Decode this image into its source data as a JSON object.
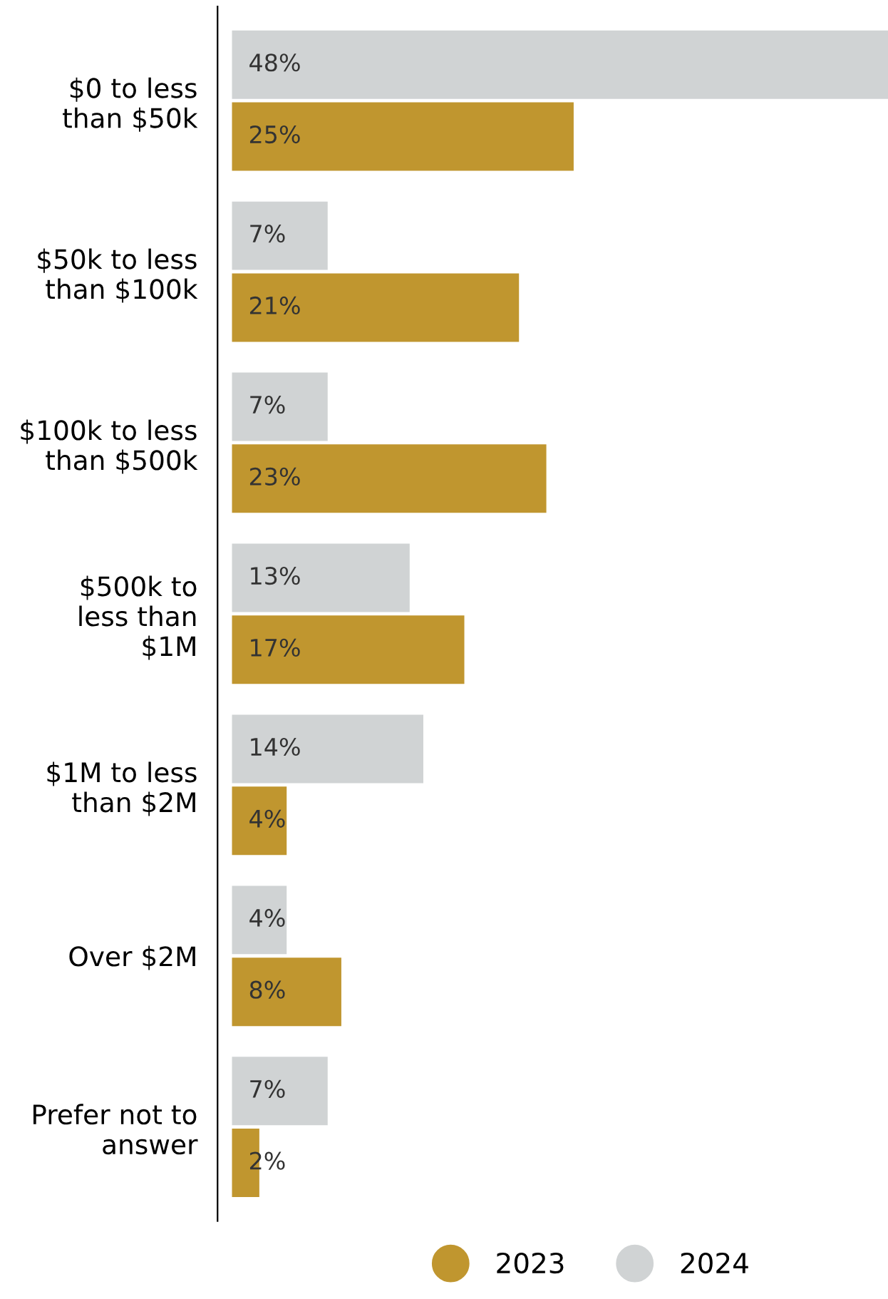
{
  "chart_data": {
    "type": "bar",
    "orientation": "horizontal",
    "categories": [
      "$0 to less\nthan $50k",
      "$50k to less\nthan $100k",
      "$100k to less\nthan $500k",
      "$500k to\nless than\n$1M",
      "$1M to less\nthan $2M",
      "Over $2M",
      "Prefer not to\nanswer"
    ],
    "series": [
      {
        "name": "2023",
        "color": "#c0962f",
        "values": [
          25,
          21,
          23,
          17,
          4,
          8,
          2
        ],
        "value_labels": [
          "25%",
          "21%",
          "23%",
          "17%",
          "4%",
          "8%",
          "2%"
        ]
      },
      {
        "name": "2024",
        "color": "#d0d3d4",
        "values": [
          48,
          7,
          7,
          13,
          14,
          4,
          7
        ],
        "value_labels": [
          "48%",
          "7%",
          "7%",
          "13%",
          "14%",
          "4%",
          "7%"
        ]
      }
    ],
    "legend": "bottom",
    "grid": false
  }
}
